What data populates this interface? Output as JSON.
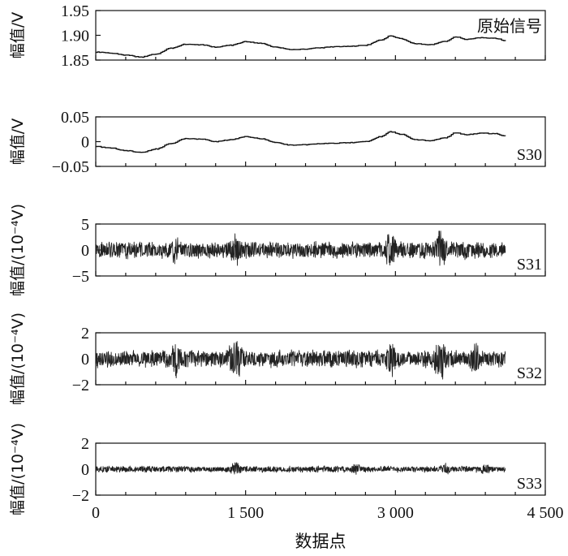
{
  "chart_data": {
    "type": "line",
    "xlabel": "数据点",
    "xlim": [
      0,
      4500
    ],
    "x_ticks": [
      0,
      1500,
      3000,
      4500
    ],
    "x_tick_labels": [
      "0",
      "1 500",
      "3 000",
      "4 500"
    ],
    "x_minor_tick_step": 300,
    "n_points": 4100,
    "panels": [
      {
        "label": "原始信号",
        "ylabel": "幅值/V",
        "ylim": [
          1.85,
          1.95
        ],
        "y_ticks": [
          1.85,
          1.9,
          1.95
        ],
        "y_tick_labels": [
          "1.85",
          "1.90",
          "1.95"
        ],
        "kind": "smooth",
        "x": [
          0,
          150,
          300,
          450,
          600,
          750,
          900,
          1050,
          1200,
          1350,
          1500,
          1650,
          1800,
          1950,
          2100,
          2250,
          2400,
          2550,
          2700,
          2850,
          2950,
          3050,
          3200,
          3350,
          3500,
          3600,
          3700,
          3850,
          4000,
          4100
        ],
        "y": [
          1.866,
          1.864,
          1.86,
          1.856,
          1.862,
          1.874,
          1.882,
          1.881,
          1.876,
          1.88,
          1.887,
          1.884,
          1.876,
          1.871,
          1.872,
          1.875,
          1.877,
          1.878,
          1.88,
          1.89,
          1.899,
          1.893,
          1.883,
          1.881,
          1.888,
          1.897,
          1.892,
          1.895,
          1.894,
          1.889
        ]
      },
      {
        "label": "S30",
        "ylabel": "幅值/V",
        "ylim": [
          -0.05,
          0.05
        ],
        "y_ticks": [
          -0.05,
          0,
          0.05
        ],
        "y_tick_labels": [
          "−0.05",
          "0",
          "0.05"
        ],
        "kind": "smooth",
        "x": [
          0,
          150,
          300,
          450,
          600,
          750,
          900,
          1050,
          1200,
          1350,
          1500,
          1650,
          1800,
          1950,
          2100,
          2250,
          2400,
          2550,
          2700,
          2850,
          2950,
          3050,
          3200,
          3350,
          3500,
          3600,
          3700,
          3850,
          4000,
          4100
        ],
        "y": [
          -0.01,
          -0.013,
          -0.018,
          -0.022,
          -0.015,
          -0.004,
          0.006,
          0.005,
          0.0,
          0.004,
          0.01,
          0.006,
          -0.002,
          -0.007,
          -0.006,
          -0.004,
          -0.003,
          -0.002,
          0.0,
          0.01,
          0.02,
          0.015,
          0.004,
          0.002,
          0.008,
          0.018,
          0.014,
          0.017,
          0.016,
          0.011
        ]
      },
      {
        "label": "S31",
        "ylabel": "幅值/(10⁻⁴V)",
        "ylim": [
          -5,
          5
        ],
        "y_ticks": [
          -5,
          0,
          5
        ],
        "y_tick_labels": [
          "−5",
          "0",
          "5"
        ],
        "kind": "noise",
        "base_amplitude": 1.2,
        "peak_amplitude": 3.5,
        "bursts": [
          [
            1400,
            2.6
          ],
          [
            2950,
            3.0
          ],
          [
            3450,
            3.2
          ],
          [
            800,
            2.0
          ],
          [
            3700,
            1.8
          ]
        ],
        "seed": 31
      },
      {
        "label": "S32",
        "ylabel": "幅值/(10⁻⁴V)",
        "ylim": [
          -2,
          2
        ],
        "y_ticks": [
          -2,
          0,
          2
        ],
        "y_tick_labels": [
          "−2",
          "0",
          "2"
        ],
        "kind": "noise",
        "base_amplitude": 0.5,
        "peak_amplitude": 1.7,
        "bursts": [
          [
            1400,
            1.6
          ],
          [
            3450,
            1.5
          ],
          [
            800,
            1.2
          ],
          [
            2950,
            1.2
          ],
          [
            3800,
            1.2
          ]
        ],
        "seed": 32
      },
      {
        "label": "S33",
        "ylabel": "幅值/(10⁻⁴V)",
        "ylim": [
          -2,
          2
        ],
        "y_ticks": [
          -2,
          0,
          2
        ],
        "y_tick_labels": [
          "−2",
          "0",
          "2"
        ],
        "kind": "noise",
        "base_amplitude": 0.18,
        "peak_amplitude": 0.5,
        "bursts": [
          [
            1400,
            0.45
          ],
          [
            2600,
            0.35
          ],
          [
            3500,
            0.35
          ],
          [
            3900,
            0.3
          ]
        ],
        "seed": 33
      }
    ]
  }
}
